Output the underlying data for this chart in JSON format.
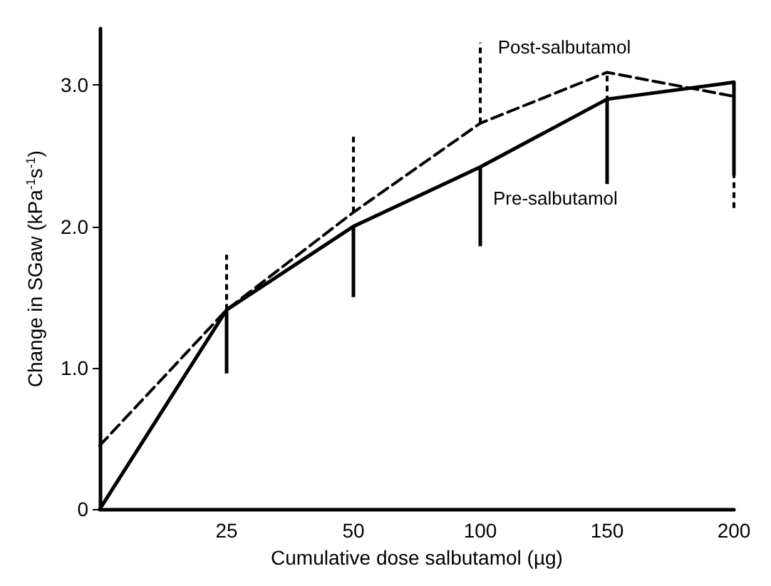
{
  "chart_data": {
    "type": "line",
    "xlabel": "Cumulative dose salbutamol (µg)",
    "ylabel": "Change in SGaw (kPa$^{-1}$s$^{-1}$)",
    "categories": [
      null,
      "25",
      "50",
      "100",
      "150",
      "200"
    ],
    "series": [
      {
        "name": "Pre-salbutamol",
        "color": "#000000",
        "line_style": "solid",
        "values": [
          0,
          1.41,
          2.0,
          2.42,
          2.9,
          3.02
        ],
        "errors": [
          null,
          [
            0.96,
            1.41
          ],
          [
            1.5,
            2.0
          ],
          [
            1.86,
            2.42
          ],
          [
            2.3,
            2.9
          ],
          [
            2.36,
            3.02
          ]
        ]
      },
      {
        "name": "Post-salbutamol",
        "color": "#000000",
        "line_style": "dashed",
        "values": [
          0.45,
          1.41,
          2.1,
          2.73,
          3.09,
          2.92
        ],
        "errors": [
          null,
          [
            1.41,
            1.8
          ],
          [
            2.1,
            2.65
          ],
          [
            2.73,
            3.3
          ],
          [
            2.32,
            3.09
          ],
          [
            2.13,
            2.92
          ]
        ]
      }
    ],
    "ylim": [
      0,
      3.4
    ],
    "yticks": [
      0,
      {
        "value": 1,
        "label": "1.0"
      },
      {
        "value": 2,
        "label": "2.0"
      },
      {
        "value": 3,
        "label": "3.0"
      }
    ],
    "grid": false,
    "legend": false,
    "marker": "none"
  }
}
